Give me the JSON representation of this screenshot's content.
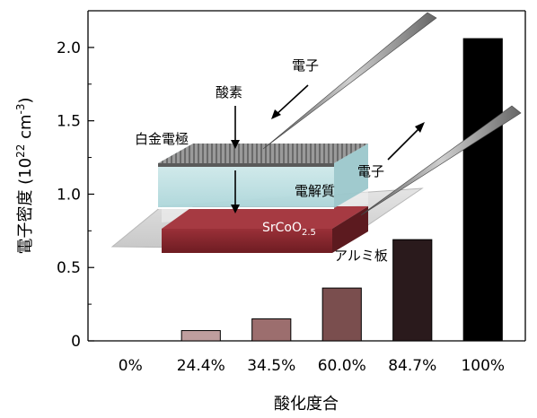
{
  "chart_data": {
    "type": "bar",
    "title": "",
    "xlabel": "酸化度合",
    "ylabel": "電子密度 (10^22 cm^-3)",
    "ylabel_parts": {
      "main": "電子密度 (10",
      "exp1": "22",
      "mid": " cm",
      "exp2": "-3",
      "end": ")"
    },
    "categories": [
      "0%",
      "24.4%",
      "34.5%",
      "60.0%",
      "84.7%",
      "100%"
    ],
    "values": [
      0.0,
      0.07,
      0.15,
      0.36,
      0.69,
      2.06
    ],
    "bar_colors": [
      "#e6d0d0",
      "#bf9e9e",
      "#9c6e6e",
      "#7a4e4e",
      "#2a1a1c",
      "#000000"
    ],
    "ylim": [
      0,
      2.25
    ],
    "yticks": [
      0,
      0.5,
      1.0,
      1.5,
      2.0
    ],
    "ytick_labels": [
      "0",
      "0.5",
      "1.0",
      "1.5",
      "2.0"
    ],
    "grid": false,
    "inset": {
      "labels": {
        "electron_top": "電子",
        "oxygen": "酸素",
        "platinum_electrode": "白金電極",
        "electrolyte": "電解質",
        "electron_right": "電子",
        "srcoo_base": "SrCoO",
        "srcoo_sub": "2.5",
        "aluminum_plate": "アルミ板"
      },
      "colors": {
        "electrolyte": "#b8dde0",
        "srcoo": "#8b2a30",
        "platinum": "#8a8a8a",
        "plate": "#d8d8d8"
      }
    }
  }
}
